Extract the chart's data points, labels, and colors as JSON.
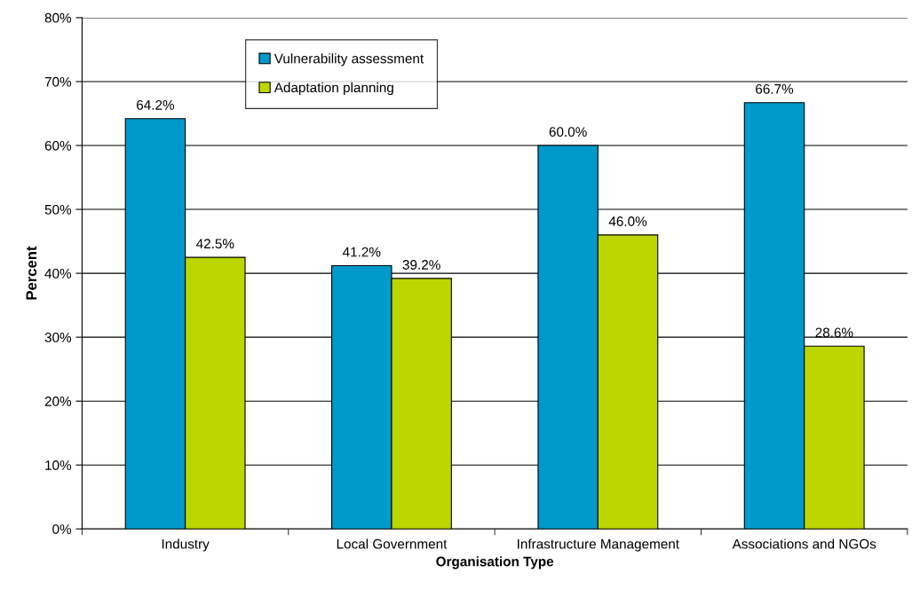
{
  "chart_data": {
    "type": "bar",
    "xlabel": "Organisation Type",
    "ylabel": "Percent",
    "categories": [
      "Industry",
      "Local Government",
      "Infrastructure Management",
      "Associations and NGOs"
    ],
    "series": [
      {
        "name": "Vulnerability assessment",
        "color": "#0099cc",
        "values": [
          64.2,
          41.2,
          60.0,
          66.7
        ],
        "value_labels": [
          "64.2%",
          "41.2%",
          "60.0%",
          "66.7%"
        ]
      },
      {
        "name": "Adaptation planning",
        "color": "#bcd600",
        "values": [
          42.5,
          39.2,
          46.0,
          28.6
        ],
        "value_labels": [
          "42.5%",
          "39.2%",
          "46.0%",
          "28.6%"
        ]
      }
    ],
    "ylim": [
      0,
      80
    ],
    "yticks": [
      {
        "value": 0,
        "label": "0%"
      },
      {
        "value": 10,
        "label": "10%"
      },
      {
        "value": 20,
        "label": "20%"
      },
      {
        "value": 30,
        "label": "30%"
      },
      {
        "value": 40,
        "label": "40%"
      },
      {
        "value": 50,
        "label": "50%"
      },
      {
        "value": 60,
        "label": "60%"
      },
      {
        "value": 70,
        "label": "70%"
      },
      {
        "value": 80,
        "label": "80%"
      }
    ],
    "grid": "y",
    "legend": "top left"
  }
}
